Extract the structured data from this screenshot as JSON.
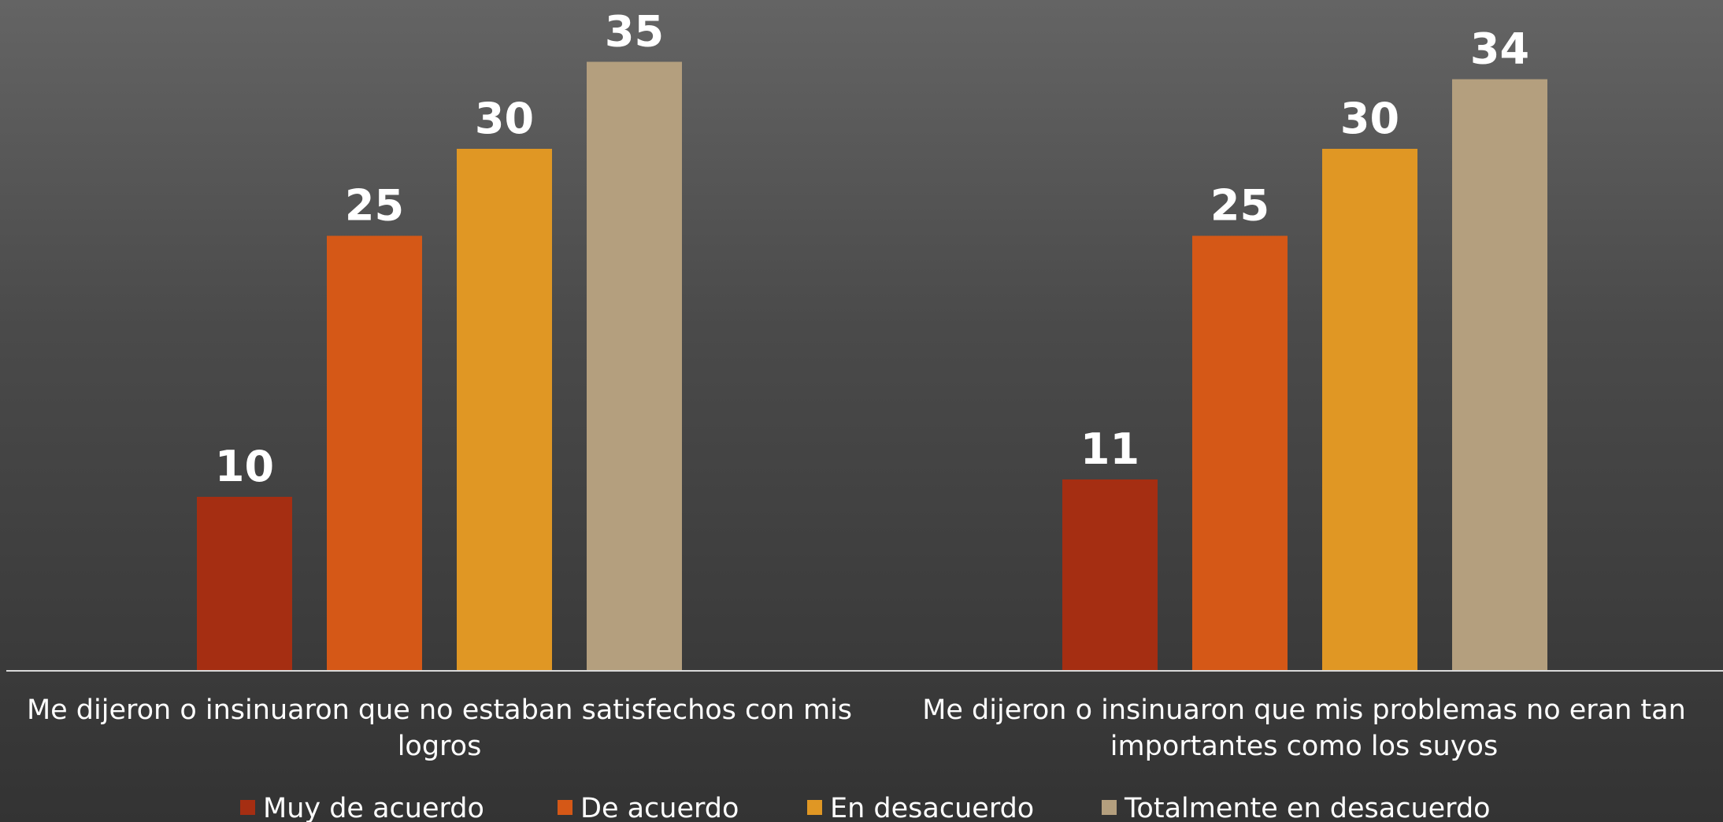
{
  "chart_data": {
    "type": "bar",
    "categories": [
      [
        "Me dijeron o insinuaron que no estaban satisfechos con mis",
        "logros"
      ],
      [
        "Me dijeron o insinuaron que mis problemas no eran tan",
        "importantes como los suyos"
      ]
    ],
    "series": [
      {
        "name": "Muy de acuerdo",
        "color": "#A52E12",
        "values": [
          10,
          11
        ]
      },
      {
        "name": "De acuerdo",
        "color": "#D55817",
        "values": [
          25,
          25
        ]
      },
      {
        "name": "En desacuerdo",
        "color": "#E09724",
        "values": [
          30,
          30
        ]
      },
      {
        "name": "Totalmente en desacuerdo",
        "color": "#B49F7E",
        "values": [
          35,
          34
        ]
      }
    ],
    "data_labels": true,
    "ylim": [
      0,
      35
    ],
    "grid": false,
    "legend_position": "bottom",
    "baseline_color": "#D9D9D9"
  }
}
